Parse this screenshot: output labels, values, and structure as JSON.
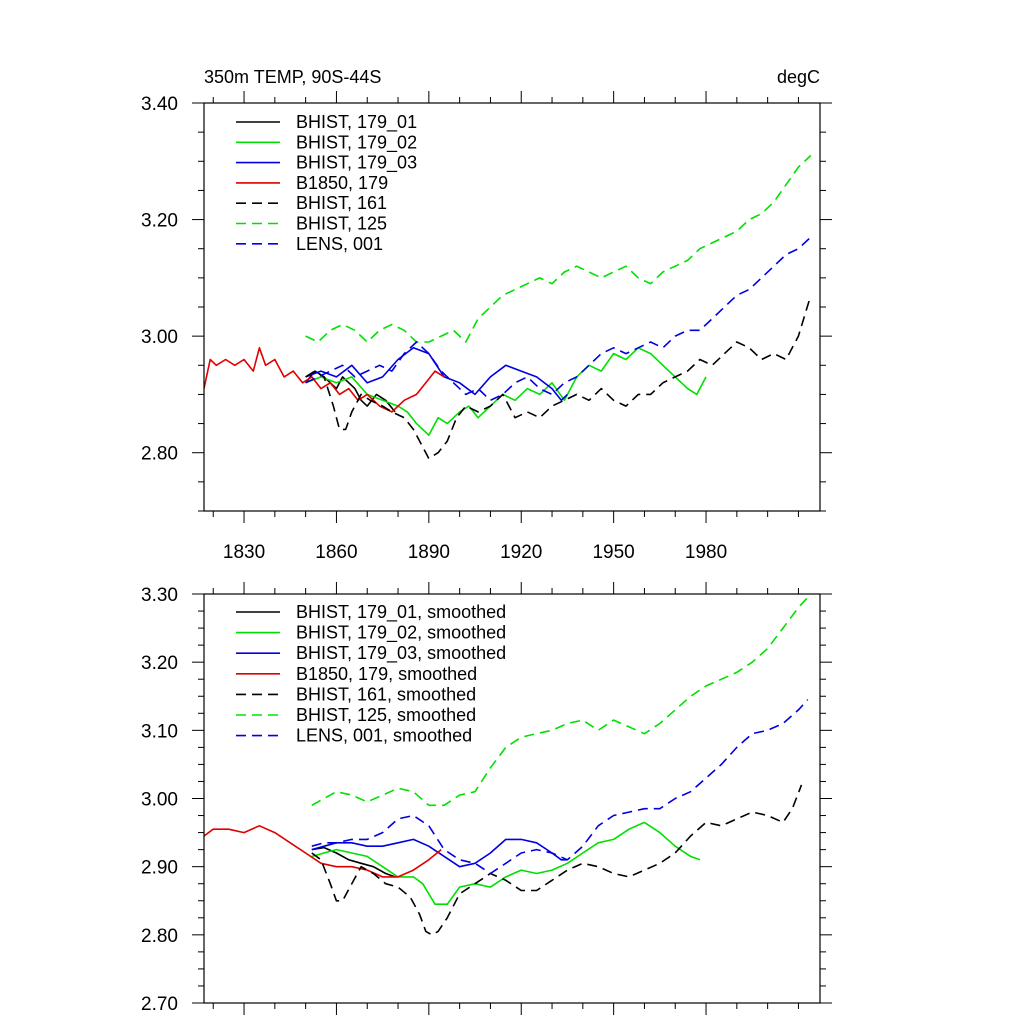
{
  "chart_data": [
    {
      "type": "line",
      "title_left": "350m TEMP, 90S-44S",
      "title_right": "degC",
      "xlabel": "",
      "ylabel": "",
      "xlim": [
        1817,
        2017
      ],
      "ylim": [
        2.7,
        3.4
      ],
      "x_ticks": [
        1830,
        1860,
        1890,
        1920,
        1950,
        1980
      ],
      "x_tick_labels": [
        "1830",
        "1860",
        "1890",
        "1920",
        "1950",
        "1980"
      ],
      "y_ticks": [
        2.8,
        3.0,
        3.2,
        3.4
      ],
      "y_tick_labels": [
        "2.80",
        "3.00",
        "3.20",
        "3.40"
      ],
      "grid": false,
      "legend_position": "top-left",
      "series": [
        {
          "name": "BHIST, 179_01",
          "color": "#000000",
          "dash": "solid",
          "x": [
            1850,
            1853,
            1856,
            1858,
            1860,
            1862,
            1864,
            1866,
            1868,
            1870,
            1873,
            1876,
            1879
          ],
          "y": [
            2.92,
            2.94,
            2.93,
            2.92,
            2.91,
            2.93,
            2.92,
            2.91,
            2.89,
            2.88,
            2.9,
            2.89,
            2.87
          ]
        },
        {
          "name": "BHIST, 179_02",
          "color": "#00e000",
          "dash": "solid",
          "x": [
            1850,
            1855,
            1860,
            1865,
            1870,
            1875,
            1880,
            1883,
            1886,
            1890,
            1893,
            1896,
            1900,
            1903,
            1906,
            1910,
            1914,
            1918,
            1922,
            1926,
            1930,
            1934,
            1938,
            1942,
            1946,
            1950,
            1954,
            1958,
            1962,
            1966,
            1970,
            1974,
            1977,
            1980
          ],
          "y": [
            2.92,
            2.93,
            2.92,
            2.93,
            2.9,
            2.89,
            2.88,
            2.87,
            2.85,
            2.83,
            2.86,
            2.85,
            2.87,
            2.88,
            2.86,
            2.88,
            2.9,
            2.89,
            2.91,
            2.9,
            2.92,
            2.89,
            2.93,
            2.95,
            2.94,
            2.97,
            2.96,
            2.98,
            2.97,
            2.95,
            2.93,
            2.91,
            2.9,
            2.93
          ]
        },
        {
          "name": "BHIST, 179_03",
          "color": "#0000e0",
          "dash": "solid",
          "x": [
            1850,
            1855,
            1860,
            1865,
            1870,
            1875,
            1880,
            1885,
            1890,
            1895,
            1900,
            1905,
            1910,
            1915,
            1920,
            1925,
            1930,
            1933,
            1935
          ],
          "y": [
            2.93,
            2.94,
            2.93,
            2.95,
            2.92,
            2.93,
            2.96,
            2.98,
            2.97,
            2.93,
            2.92,
            2.9,
            2.93,
            2.95,
            2.94,
            2.93,
            2.91,
            2.89,
            2.9
          ]
        },
        {
          "name": "B1850, 179",
          "color": "#e00000",
          "dash": "solid",
          "x": [
            1817,
            1819,
            1821,
            1824,
            1827,
            1830,
            1833,
            1835,
            1837,
            1840,
            1843,
            1846,
            1849,
            1852,
            1855,
            1858,
            1861,
            1864,
            1867,
            1870,
            1874,
            1878,
            1882,
            1886,
            1889,
            1892,
            1895
          ],
          "y": [
            2.91,
            2.96,
            2.95,
            2.96,
            2.95,
            2.96,
            2.94,
            2.98,
            2.95,
            2.96,
            2.93,
            2.94,
            2.92,
            2.93,
            2.91,
            2.92,
            2.9,
            2.91,
            2.89,
            2.9,
            2.88,
            2.87,
            2.89,
            2.9,
            2.92,
            2.94,
            2.93
          ]
        },
        {
          "name": "BHIST, 161",
          "color": "#000000",
          "dash": "dashed",
          "x": [
            1850,
            1853,
            1856,
            1859,
            1861,
            1863,
            1865,
            1868,
            1871,
            1875,
            1878,
            1882,
            1885,
            1888,
            1890,
            1893,
            1896,
            1899,
            1902,
            1906,
            1910,
            1914,
            1918,
            1922,
            1926,
            1930,
            1934,
            1938,
            1942,
            1946,
            1950,
            1954,
            1958,
            1962,
            1966,
            1970,
            1974,
            1978,
            1982,
            1986,
            1990,
            1994,
            1998,
            2002,
            2006,
            2010,
            2014
          ],
          "y": [
            2.93,
            2.94,
            2.93,
            2.88,
            2.84,
            2.84,
            2.87,
            2.9,
            2.89,
            2.88,
            2.87,
            2.86,
            2.84,
            2.81,
            2.79,
            2.8,
            2.82,
            2.86,
            2.88,
            2.87,
            2.88,
            2.9,
            2.86,
            2.87,
            2.86,
            2.88,
            2.89,
            2.9,
            2.89,
            2.91,
            2.89,
            2.88,
            2.9,
            2.9,
            2.92,
            2.93,
            2.94,
            2.96,
            2.95,
            2.97,
            2.99,
            2.98,
            2.96,
            2.97,
            2.96,
            3.0,
            3.07
          ]
        },
        {
          "name": "BHIST, 125",
          "color": "#00e000",
          "dash": "dashed",
          "x": [
            1850,
            1854,
            1858,
            1862,
            1866,
            1870,
            1874,
            1878,
            1882,
            1886,
            1890,
            1894,
            1898,
            1902,
            1906,
            1910,
            1914,
            1918,
            1922,
            1926,
            1930,
            1934,
            1938,
            1942,
            1946,
            1950,
            1954,
            1958,
            1962,
            1966,
            1970,
            1974,
            1978,
            1982,
            1986,
            1990,
            1994,
            1998,
            2002,
            2006,
            2010,
            2014
          ],
          "y": [
            3.0,
            2.99,
            3.01,
            3.02,
            3.01,
            2.99,
            3.01,
            3.02,
            3.01,
            2.99,
            2.99,
            3.0,
            3.01,
            2.99,
            3.03,
            3.05,
            3.07,
            3.08,
            3.09,
            3.1,
            3.09,
            3.11,
            3.12,
            3.11,
            3.1,
            3.11,
            3.12,
            3.1,
            3.09,
            3.11,
            3.12,
            3.13,
            3.15,
            3.16,
            3.17,
            3.18,
            3.2,
            3.21,
            3.23,
            3.26,
            3.29,
            3.31
          ]
        },
        {
          "name": "LENS, 001",
          "color": "#0000e0",
          "dash": "dashed",
          "x": [
            1850,
            1854,
            1858,
            1862,
            1866,
            1870,
            1874,
            1878,
            1882,
            1886,
            1890,
            1894,
            1898,
            1902,
            1906,
            1910,
            1914,
            1918,
            1922,
            1926,
            1930,
            1934,
            1938,
            1942,
            1946,
            1950,
            1954,
            1958,
            1962,
            1966,
            1970,
            1974,
            1978,
            1982,
            1986,
            1990,
            1994,
            1998,
            2002,
            2006,
            2010,
            2014
          ],
          "y": [
            2.92,
            2.93,
            2.94,
            2.95,
            2.93,
            2.94,
            2.95,
            2.94,
            2.97,
            2.99,
            2.97,
            2.94,
            2.92,
            2.9,
            2.91,
            2.89,
            2.9,
            2.92,
            2.93,
            2.91,
            2.9,
            2.92,
            2.93,
            2.95,
            2.97,
            2.98,
            2.97,
            2.98,
            2.99,
            2.98,
            3.0,
            3.01,
            3.01,
            3.03,
            3.05,
            3.07,
            3.08,
            3.1,
            3.12,
            3.14,
            3.15,
            3.17
          ]
        }
      ]
    },
    {
      "type": "line",
      "xlabel": "",
      "ylabel": "",
      "xlim": [
        1817,
        2017
      ],
      "ylim": [
        2.7,
        3.3
      ],
      "x_ticks": [
        1830,
        1860,
        1890,
        1920,
        1950,
        1980
      ],
      "y_ticks": [
        2.7,
        2.8,
        2.9,
        3.0,
        3.1,
        3.2,
        3.3
      ],
      "y_tick_labels": [
        "2.70",
        "2.80",
        "2.90",
        "3.00",
        "3.10",
        "3.20",
        "3.30"
      ],
      "grid": false,
      "legend_position": "top-left",
      "series": [
        {
          "name": "BHIST, 179_01, smoothed",
          "color": "#000000",
          "dash": "solid",
          "x": [
            1852,
            1856,
            1860,
            1864,
            1868,
            1872,
            1876,
            1879
          ],
          "y": [
            2.925,
            2.928,
            2.92,
            2.91,
            2.905,
            2.9,
            2.89,
            2.885
          ]
        },
        {
          "name": "BHIST, 179_02, smoothed",
          "color": "#00e000",
          "dash": "solid",
          "x": [
            1852,
            1856,
            1860,
            1865,
            1870,
            1875,
            1880,
            1885,
            1888,
            1892,
            1896,
            1900,
            1905,
            1910,
            1915,
            1920,
            1925,
            1930,
            1935,
            1940,
            1945,
            1950,
            1955,
            1960,
            1965,
            1970,
            1975,
            1978
          ],
          "y": [
            2.915,
            2.92,
            2.925,
            2.92,
            2.915,
            2.9,
            2.885,
            2.885,
            2.875,
            2.845,
            2.845,
            2.87,
            2.875,
            2.87,
            2.885,
            2.895,
            2.89,
            2.895,
            2.905,
            2.92,
            2.935,
            2.94,
            2.955,
            2.965,
            2.95,
            2.93,
            2.915,
            2.91
          ]
        },
        {
          "name": "BHIST, 179_03, smoothed",
          "color": "#0000e0",
          "dash": "solid",
          "x": [
            1852,
            1856,
            1860,
            1865,
            1870,
            1875,
            1880,
            1885,
            1890,
            1895,
            1900,
            1905,
            1910,
            1915,
            1920,
            1925,
            1930,
            1933,
            1935
          ],
          "y": [
            2.925,
            2.93,
            2.935,
            2.935,
            2.93,
            2.93,
            2.935,
            2.94,
            2.93,
            2.915,
            2.9,
            2.905,
            2.92,
            2.94,
            2.94,
            2.935,
            2.92,
            2.91,
            2.91
          ]
        },
        {
          "name": "B1850, 179, smoothed",
          "color": "#e00000",
          "dash": "solid",
          "x": [
            1817,
            1820,
            1825,
            1830,
            1835,
            1840,
            1845,
            1850,
            1855,
            1860,
            1865,
            1870,
            1875,
            1880,
            1885,
            1890,
            1894
          ],
          "y": [
            2.945,
            2.955,
            2.955,
            2.95,
            2.96,
            2.95,
            2.935,
            2.92,
            2.905,
            2.9,
            2.9,
            2.895,
            2.885,
            2.885,
            2.895,
            2.91,
            2.925
          ]
        },
        {
          "name": "BHIST, 161, smoothed",
          "color": "#000000",
          "dash": "dashed",
          "x": [
            1852,
            1855,
            1858,
            1860,
            1862,
            1865,
            1868,
            1872,
            1876,
            1880,
            1884,
            1887,
            1889,
            1891,
            1893,
            1896,
            1900,
            1905,
            1910,
            1915,
            1920,
            1925,
            1930,
            1935,
            1940,
            1945,
            1950,
            1955,
            1960,
            1965,
            1970,
            1975,
            1980,
            1985,
            1990,
            1995,
            2000,
            2005,
            2008,
            2011
          ],
          "y": [
            2.92,
            2.91,
            2.875,
            2.85,
            2.85,
            2.875,
            2.9,
            2.89,
            2.875,
            2.87,
            2.855,
            2.83,
            2.805,
            2.8,
            2.805,
            2.825,
            2.86,
            2.875,
            2.89,
            2.88,
            2.865,
            2.865,
            2.88,
            2.895,
            2.905,
            2.9,
            2.89,
            2.885,
            2.895,
            2.905,
            2.92,
            2.945,
            2.965,
            2.96,
            2.97,
            2.98,
            2.975,
            2.965,
            2.985,
            3.02
          ]
        },
        {
          "name": "BHIST, 125, smoothed",
          "color": "#00e000",
          "dash": "dashed",
          "x": [
            1852,
            1856,
            1860,
            1865,
            1870,
            1875,
            1880,
            1885,
            1890,
            1895,
            1900,
            1905,
            1910,
            1915,
            1920,
            1925,
            1930,
            1935,
            1940,
            1945,
            1950,
            1955,
            1960,
            1965,
            1970,
            1975,
            1980,
            1985,
            1990,
            1995,
            2000,
            2005,
            2010,
            2013
          ],
          "y": [
            2.99,
            3.0,
            3.01,
            3.005,
            2.995,
            3.005,
            3.015,
            3.01,
            2.99,
            2.99,
            3.005,
            3.01,
            3.045,
            3.075,
            3.09,
            3.095,
            3.1,
            3.11,
            3.115,
            3.1,
            3.115,
            3.105,
            3.095,
            3.11,
            3.13,
            3.15,
            3.165,
            3.175,
            3.185,
            3.2,
            3.22,
            3.25,
            3.28,
            3.295
          ]
        },
        {
          "name": "LENS, 001, smoothed",
          "color": "#0000e0",
          "dash": "dashed",
          "x": [
            1852,
            1856,
            1860,
            1865,
            1870,
            1875,
            1880,
            1885,
            1890,
            1895,
            1900,
            1905,
            1910,
            1915,
            1920,
            1925,
            1930,
            1935,
            1940,
            1945,
            1950,
            1955,
            1960,
            1965,
            1970,
            1975,
            1980,
            1985,
            1990,
            1995,
            2000,
            2005,
            2010,
            2013
          ],
          "y": [
            2.93,
            2.935,
            2.935,
            2.94,
            2.94,
            2.95,
            2.97,
            2.975,
            2.96,
            2.925,
            2.91,
            2.905,
            2.89,
            2.905,
            2.92,
            2.925,
            2.92,
            2.91,
            2.93,
            2.96,
            2.975,
            2.98,
            2.985,
            2.985,
            3.0,
            3.01,
            3.03,
            3.05,
            3.075,
            3.095,
            3.1,
            3.11,
            3.13,
            3.145
          ]
        }
      ]
    }
  ]
}
